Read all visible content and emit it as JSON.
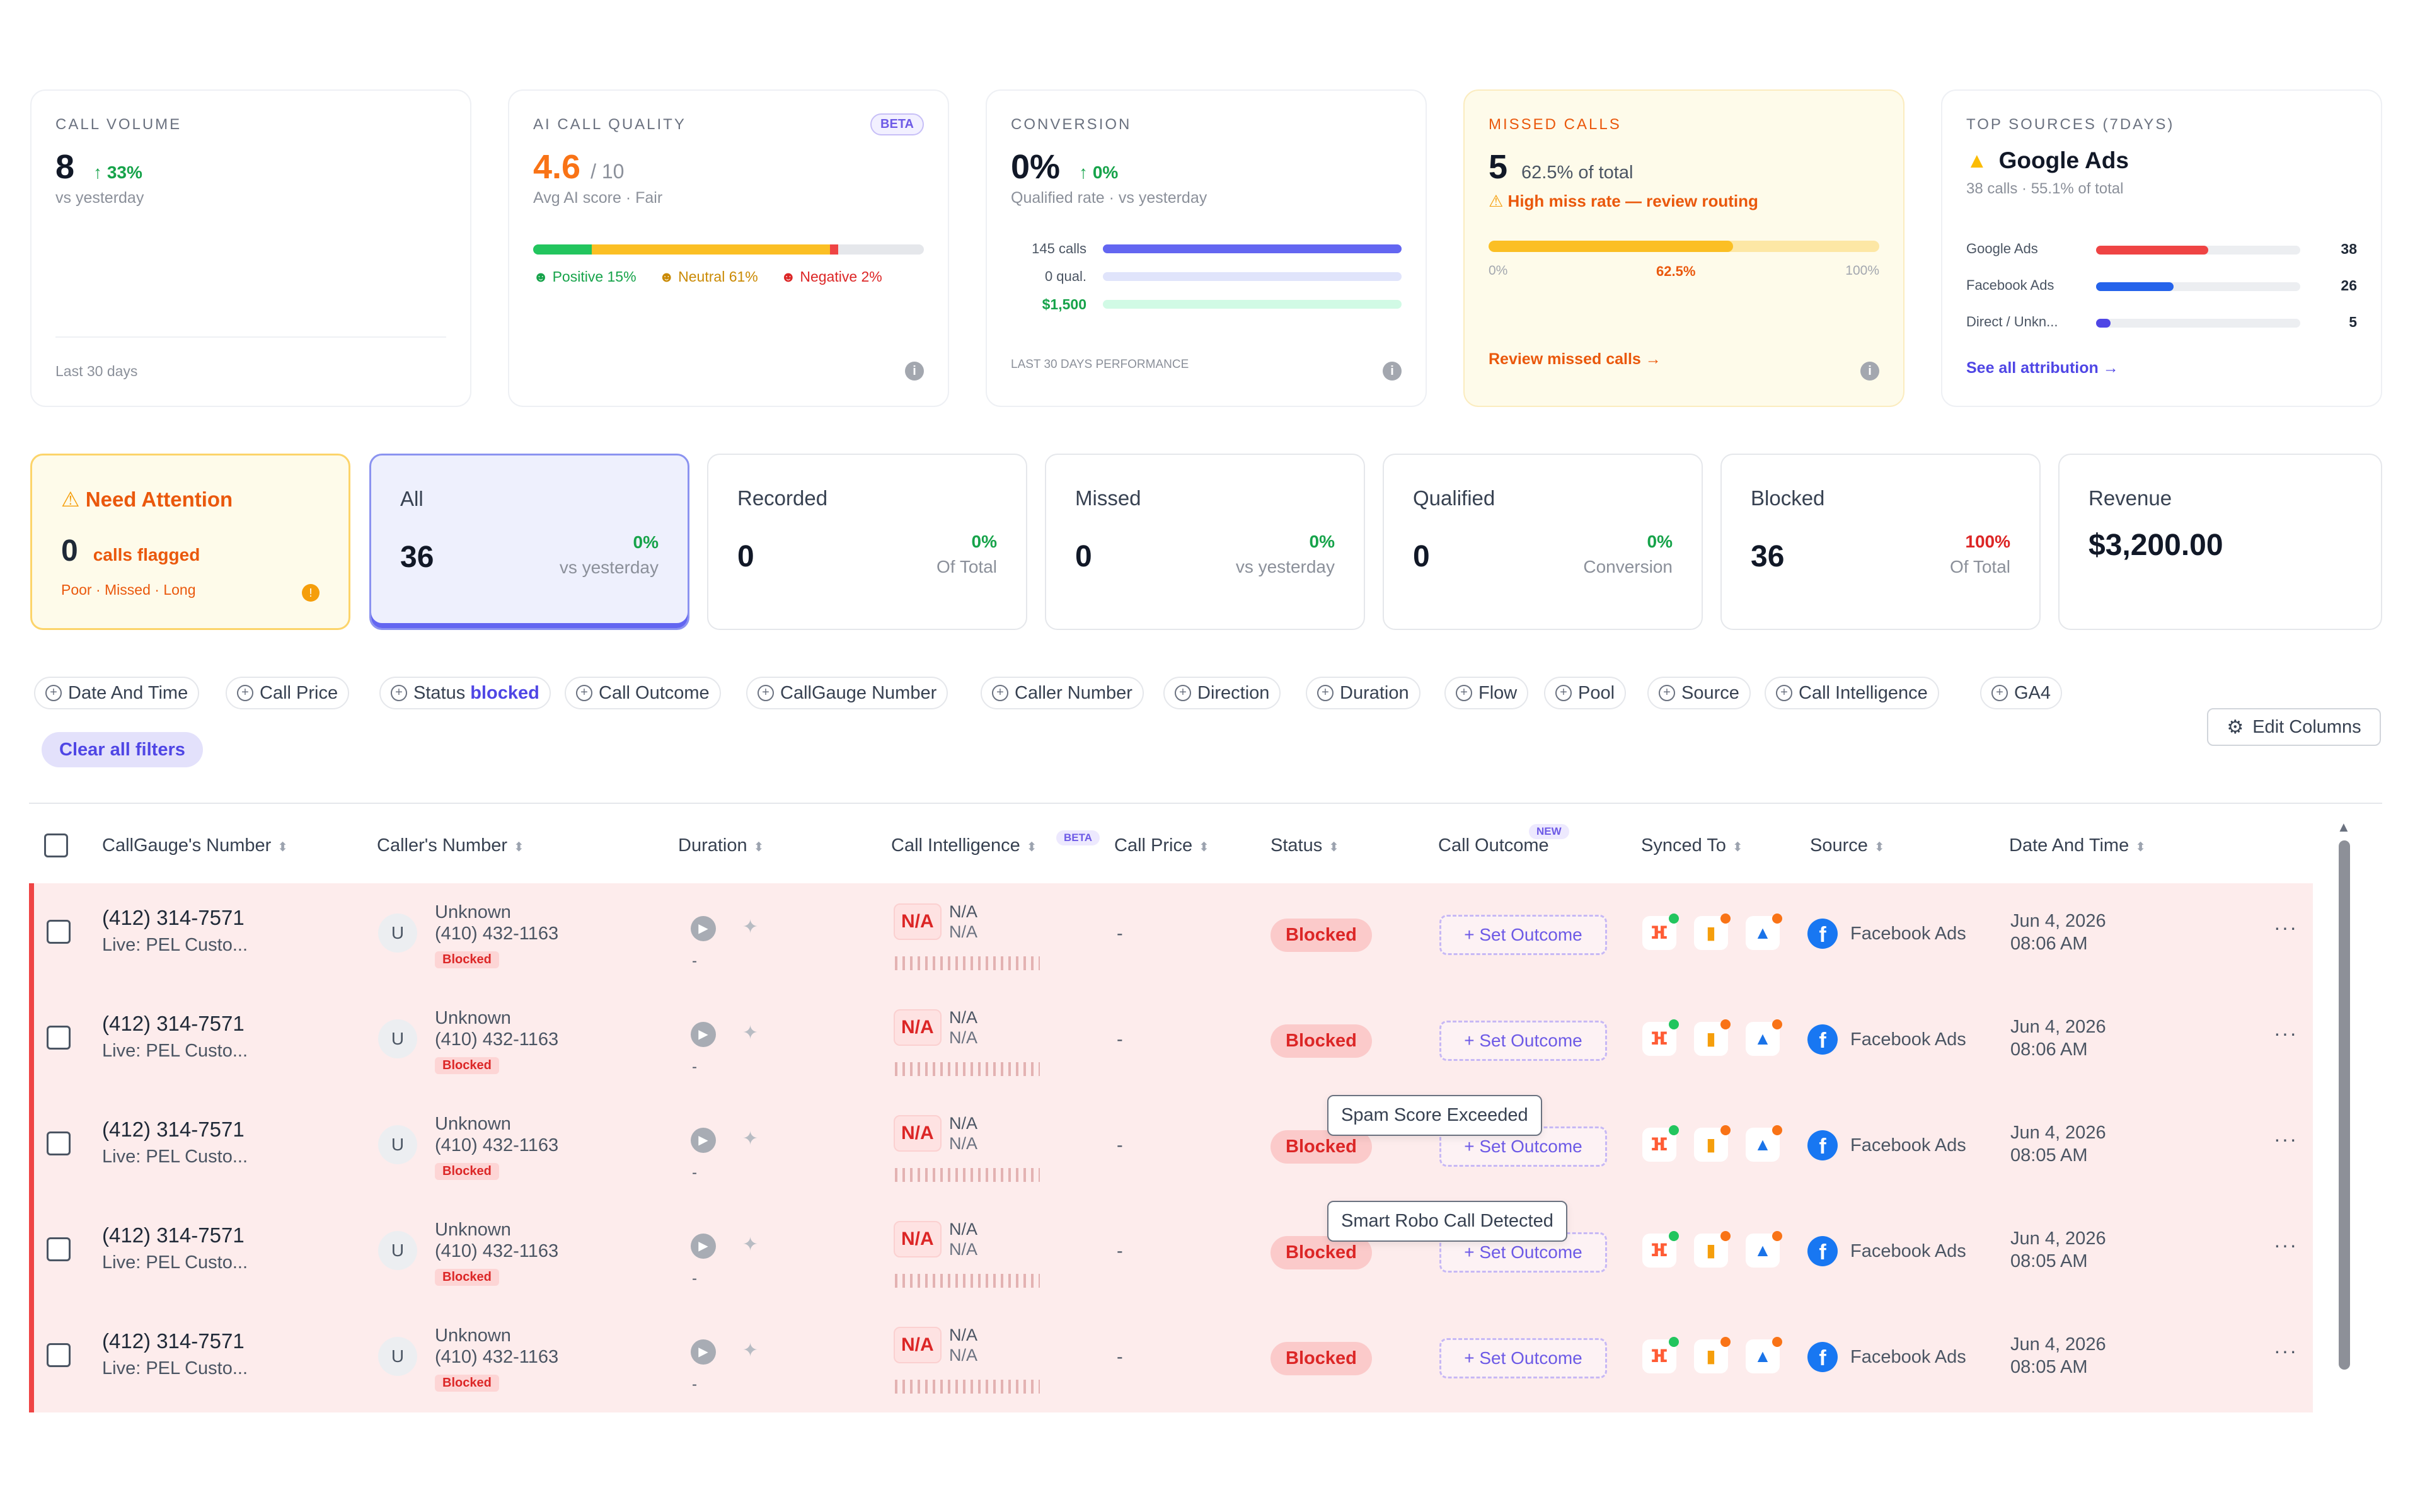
{
  "kpis": {
    "call_volume": {
      "label": "CALL VOLUME",
      "value": "8",
      "delta": "↑ 33%",
      "sub": "vs yesterday",
      "footer": "Last 30 days"
    },
    "ai_quality": {
      "label": "AI CALL QUALITY",
      "badge": "BETA",
      "value": "4.6",
      "of": "/ 10",
      "sub": "Avg AI score · Fair",
      "positive": "Positive 15%",
      "neutral": "Neutral 61%",
      "negative": "Negative 2%",
      "positive_pct": 15,
      "neutral_pct": 61,
      "negative_pct": 2
    },
    "conversion": {
      "label": "CONVERSION",
      "value": "0%",
      "delta": "↑ 0%",
      "sub": "Qualified rate · vs yesterday",
      "calls": "145 calls",
      "qual": "0 qual.",
      "money": "$1,500",
      "footer": "LAST 30 DAYS PERFORMANCE"
    },
    "missed": {
      "label": "MISSED CALLS",
      "value": "5",
      "of_total": "62.5% of total",
      "warn": "High miss rate — review routing",
      "pct": 62.5,
      "axis_min": "0%",
      "axis_mid": "62.5%",
      "axis_max": "100%",
      "link": "Review missed calls →"
    },
    "top_sources": {
      "label": "TOP SOURCES (7DAYS)",
      "top": "Google Ads",
      "sub": "38 calls · 55.1% of total",
      "link": "See all attribution →",
      "rows": [
        {
          "name": "Google Ads",
          "value": "38",
          "color": "#ef4444",
          "frac": 0.55
        },
        {
          "name": "Facebook Ads",
          "value": "26",
          "color": "#2563eb",
          "frac": 0.38
        },
        {
          "name": "Direct / Unkn...",
          "value": "5",
          "color": "#4f46e5",
          "frac": 0.07
        }
      ]
    }
  },
  "tiles": {
    "attention": {
      "label": "Need Attention",
      "value": "0",
      "caption": "calls flagged",
      "sub": "Poor · Missed · Long"
    },
    "all": {
      "label": "All",
      "value": "36",
      "pct": "0%",
      "cap": "vs yesterday"
    },
    "recorded": {
      "label": "Recorded",
      "value": "0",
      "pct": "0%",
      "cap": "Of Total"
    },
    "missed": {
      "label": "Missed",
      "value": "0",
      "pct": "0%",
      "cap": "vs yesterday"
    },
    "qualified": {
      "label": "Qualified",
      "value": "0",
      "pct": "0%",
      "cap": "Conversion"
    },
    "blocked": {
      "label": "Blocked",
      "value": "36",
      "pct": "100%",
      "cap": "Of Total"
    },
    "revenue": {
      "label": "Revenue",
      "value": "$3,200.00"
    }
  },
  "filters": {
    "chips": [
      "Date And Time",
      "Call Price",
      "Status",
      "Call Outcome",
      "CallGauge Number",
      "Caller Number",
      "Direction",
      "Duration",
      "Flow",
      "Pool",
      "Source",
      "Call Intelligence",
      "GA4"
    ],
    "status_value": "blocked",
    "clear": "Clear all filters",
    "edit_columns": "Edit Columns"
  },
  "table": {
    "headers": [
      "CallGauge's Number",
      "Caller's Number",
      "Duration",
      "Call Intelligence",
      "Call Price",
      "Status",
      "Call Outcome",
      "Synced To",
      "Source",
      "Date And Time"
    ],
    "beta": "BETA",
    "new": "NEW",
    "rows": [
      {
        "number": "(412) 314-7571",
        "live": "Live: PEL Custo...",
        "caller": "Unknown",
        "caller_num": "(410) 432-1163",
        "tag": "Blocked",
        "avatar": "U",
        "dur": "-",
        "na": "N/A",
        "na1": "N/A",
        "na2": "N/A",
        "price": "-",
        "status": "Blocked",
        "outcome": "+ Set Outcome",
        "source": "Facebook Ads",
        "date": "Jun 4, 2026",
        "time": "08:06 AM"
      },
      {
        "number": "(412) 314-7571",
        "live": "Live: PEL Custo...",
        "caller": "Unknown",
        "caller_num": "(410) 432-1163",
        "tag": "Blocked",
        "avatar": "U",
        "dur": "-",
        "na": "N/A",
        "na1": "N/A",
        "na2": "N/A",
        "price": "-",
        "status": "Blocked",
        "outcome": "+ Set Outcome",
        "source": "Facebook Ads",
        "date": "Jun 4, 2026",
        "time": "08:06 AM"
      },
      {
        "number": "(412) 314-7571",
        "live": "Live: PEL Custo...",
        "caller": "Unknown",
        "caller_num": "(410) 432-1163",
        "tag": "Blocked",
        "avatar": "U",
        "dur": "-",
        "na": "N/A",
        "na1": "N/A",
        "na2": "N/A",
        "price": "-",
        "status": "Blocked",
        "outcome": "+ Set Outcome",
        "source": "Facebook Ads",
        "date": "Jun 4, 2026",
        "time": "08:05 AM"
      },
      {
        "number": "(412) 314-7571",
        "live": "Live: PEL Custo...",
        "caller": "Unknown",
        "caller_num": "(410) 432-1163",
        "tag": "Blocked",
        "avatar": "U",
        "dur": "-",
        "na": "N/A",
        "na1": "N/A",
        "na2": "N/A",
        "price": "-",
        "status": "Blocked",
        "outcome": "+ Set Outcome",
        "source": "Facebook Ads",
        "date": "Jun 4, 2026",
        "time": "08:05 AM"
      },
      {
        "number": "(412) 314-7571",
        "live": "Live: PEL Custo...",
        "caller": "Unknown",
        "caller_num": "(410) 432-1163",
        "tag": "Blocked",
        "avatar": "U",
        "dur": "-",
        "na": "N/A",
        "na1": "N/A",
        "na2": "N/A",
        "price": "-",
        "status": "Blocked",
        "outcome": "+ Set Outcome",
        "source": "Facebook Ads",
        "date": "Jun 4, 2026",
        "time": "08:05 AM"
      }
    ],
    "tooltips": [
      "Spam Score Exceeded",
      "Smart Robo Call Detected"
    ]
  },
  "icons": {
    "warning": "warning-icon",
    "info": "info-icon",
    "play": "play-icon",
    "gear": "gear-icon",
    "more": "more-icon",
    "hubspot": "hubspot-icon",
    "analytics": "google-analytics-icon",
    "ads": "google-ads-icon",
    "facebook": "facebook-icon"
  }
}
